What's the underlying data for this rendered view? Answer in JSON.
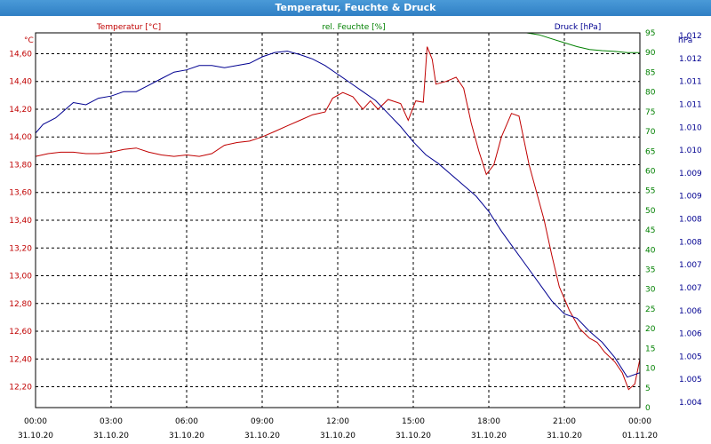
{
  "window": {
    "title": "Temperatur, Feuchte & Druck"
  },
  "chart_data": {
    "type": "line",
    "title": "Temperatur, Feuchte & Druck",
    "xlim": [
      0,
      24
    ],
    "x_ticks": [
      {
        "x": 0,
        "time": "00:00",
        "date": "31.10.20"
      },
      {
        "x": 3,
        "time": "03:00",
        "date": "31.10.20"
      },
      {
        "x": 6,
        "time": "06:00",
        "date": "31.10.20"
      },
      {
        "x": 9,
        "time": "09:00",
        "date": "31.10.20"
      },
      {
        "x": 12,
        "time": "12:00",
        "date": "31.10.20"
      },
      {
        "x": 15,
        "time": "15:00",
        "date": "31.10.20"
      },
      {
        "x": 18,
        "time": "18:00",
        "date": "31.10.20"
      },
      {
        "x": 21,
        "time": "21:00",
        "date": "31.10.20"
      },
      {
        "x": 24,
        "time": "00:00",
        "date": "01.11.20"
      }
    ],
    "axes": {
      "left": {
        "label": "°C",
        "legend": "Temperatur [°C]",
        "color": "#c00000",
        "ylim": [
          12.05,
          14.75
        ],
        "ticks": [
          "12,20",
          "12,40",
          "12,60",
          "12,80",
          "13,00",
          "13,20",
          "13,40",
          "13,60",
          "13,80",
          "14,00",
          "14,20",
          "14,40",
          "14,60"
        ],
        "tick_values": [
          12.2,
          12.4,
          12.6,
          12.8,
          13.0,
          13.2,
          13.4,
          13.6,
          13.8,
          14.0,
          14.2,
          14.4,
          14.6
        ]
      },
      "mid": {
        "label": "%",
        "legend": "rel. Feuchte [%]",
        "color": "#008000",
        "ylim": [
          0,
          95
        ],
        "ticks": [
          "0",
          "5",
          "10",
          "15",
          "20",
          "25",
          "30",
          "35",
          "40",
          "45",
          "50",
          "55",
          "60",
          "65",
          "70",
          "75",
          "80",
          "85",
          "90",
          "95"
        ]
      },
      "right": {
        "label": "hPa",
        "legend": "Druck [hPa]",
        "color": "#000090",
        "ylim": [
          1004.2,
          1012.8
        ],
        "ticks": [
          "1.004",
          "1.005",
          "1.005",
          "1.006",
          "1.006",
          "1.007",
          "1.007",
          "1.008",
          "1.008",
          "1.009",
          "1.009",
          "1.010",
          "1.010",
          "1.011",
          "1.011",
          "1.012",
          "1.012"
        ]
      }
    },
    "grid": true,
    "series": [
      {
        "name": "Temperatur [°C]",
        "axis": "left",
        "color": "#c00000",
        "points": [
          [
            0,
            13.86
          ],
          [
            0.5,
            13.88
          ],
          [
            1,
            13.89
          ],
          [
            1.5,
            13.89
          ],
          [
            2,
            13.88
          ],
          [
            2.5,
            13.88
          ],
          [
            3,
            13.89
          ],
          [
            3.5,
            13.91
          ],
          [
            4,
            13.92
          ],
          [
            4.5,
            13.89
          ],
          [
            5,
            13.87
          ],
          [
            5.5,
            13.86
          ],
          [
            6,
            13.87
          ],
          [
            6.5,
            13.86
          ],
          [
            7,
            13.88
          ],
          [
            7.5,
            13.94
          ],
          [
            8,
            13.96
          ],
          [
            8.5,
            13.97
          ],
          [
            9,
            14.0
          ],
          [
            9.5,
            14.04
          ],
          [
            10,
            14.08
          ],
          [
            10.5,
            14.12
          ],
          [
            11,
            14.16
          ],
          [
            11.5,
            14.18
          ],
          [
            11.8,
            14.28
          ],
          [
            12.2,
            14.32
          ],
          [
            12.6,
            14.29
          ],
          [
            13,
            14.2
          ],
          [
            13.3,
            14.26
          ],
          [
            13.6,
            14.2
          ],
          [
            14,
            14.27
          ],
          [
            14.5,
            14.24
          ],
          [
            14.8,
            14.12
          ],
          [
            15.1,
            14.26
          ],
          [
            15.4,
            14.25
          ],
          [
            15.55,
            14.65
          ],
          [
            15.75,
            14.56
          ],
          [
            15.9,
            14.38
          ],
          [
            16.3,
            14.4
          ],
          [
            16.7,
            14.43
          ],
          [
            17,
            14.35
          ],
          [
            17.3,
            14.1
          ],
          [
            17.6,
            13.9
          ],
          [
            17.9,
            13.73
          ],
          [
            18.2,
            13.8
          ],
          [
            18.5,
            14.0
          ],
          [
            18.9,
            14.17
          ],
          [
            19.2,
            14.15
          ],
          [
            19.6,
            13.8
          ],
          [
            19.9,
            13.6
          ],
          [
            20.2,
            13.4
          ],
          [
            20.5,
            13.15
          ],
          [
            20.8,
            12.92
          ],
          [
            21.2,
            12.75
          ],
          [
            21.6,
            12.62
          ],
          [
            22,
            12.55
          ],
          [
            22.3,
            12.52
          ],
          [
            22.6,
            12.45
          ],
          [
            23,
            12.38
          ],
          [
            23.3,
            12.3
          ],
          [
            23.55,
            12.18
          ],
          [
            23.8,
            12.22
          ],
          [
            24,
            12.4
          ]
        ]
      },
      {
        "name": "rel. Feuchte [%]",
        "axis": "mid",
        "color": "#008000",
        "points": [
          [
            19.5,
            95
          ],
          [
            20,
            94.5
          ],
          [
            20.5,
            93.5
          ],
          [
            21,
            92.5
          ],
          [
            21.5,
            91.5
          ],
          [
            22,
            90.8
          ],
          [
            22.5,
            90.5
          ],
          [
            23,
            90.3
          ],
          [
            23.5,
            90
          ],
          [
            24,
            90
          ]
        ]
      },
      {
        "name": "Druck [hPa]",
        "axis": "right",
        "color": "#000090",
        "points": [
          [
            0,
            1010.5
          ],
          [
            0.3,
            1010.7
          ],
          [
            0.8,
            1010.85
          ],
          [
            1.2,
            1011.05
          ],
          [
            1.5,
            1011.2
          ],
          [
            2,
            1011.15
          ],
          [
            2.5,
            1011.3
          ],
          [
            3,
            1011.35
          ],
          [
            3.5,
            1011.45
          ],
          [
            4,
            1011.45
          ],
          [
            4.5,
            1011.6
          ],
          [
            5,
            1011.75
          ],
          [
            5.5,
            1011.9
          ],
          [
            6,
            1011.95
          ],
          [
            6.5,
            1012.05
          ],
          [
            7,
            1012.05
          ],
          [
            7.5,
            1012.0
          ],
          [
            8,
            1012.05
          ],
          [
            8.5,
            1012.1
          ],
          [
            9,
            1012.25
          ],
          [
            9.5,
            1012.35
          ],
          [
            10,
            1012.38
          ],
          [
            10.5,
            1012.3
          ],
          [
            11,
            1012.2
          ],
          [
            11.5,
            1012.05
          ],
          [
            12,
            1011.85
          ],
          [
            12.5,
            1011.65
          ],
          [
            13,
            1011.45
          ],
          [
            13.5,
            1011.25
          ],
          [
            14,
            1010.95
          ],
          [
            14.5,
            1010.65
          ],
          [
            15,
            1010.3
          ],
          [
            15.5,
            1010.0
          ],
          [
            16,
            1009.8
          ],
          [
            16.5,
            1009.55
          ],
          [
            17,
            1009.3
          ],
          [
            17.5,
            1009.05
          ],
          [
            18,
            1008.7
          ],
          [
            18.5,
            1008.25
          ],
          [
            19,
            1007.85
          ],
          [
            19.5,
            1007.45
          ],
          [
            20,
            1007.05
          ],
          [
            20.5,
            1006.65
          ],
          [
            21,
            1006.35
          ],
          [
            21.5,
            1006.25
          ],
          [
            22,
            1005.95
          ],
          [
            22.5,
            1005.7
          ],
          [
            23,
            1005.35
          ],
          [
            23.5,
            1004.9
          ],
          [
            24,
            1005.0
          ]
        ]
      }
    ]
  }
}
